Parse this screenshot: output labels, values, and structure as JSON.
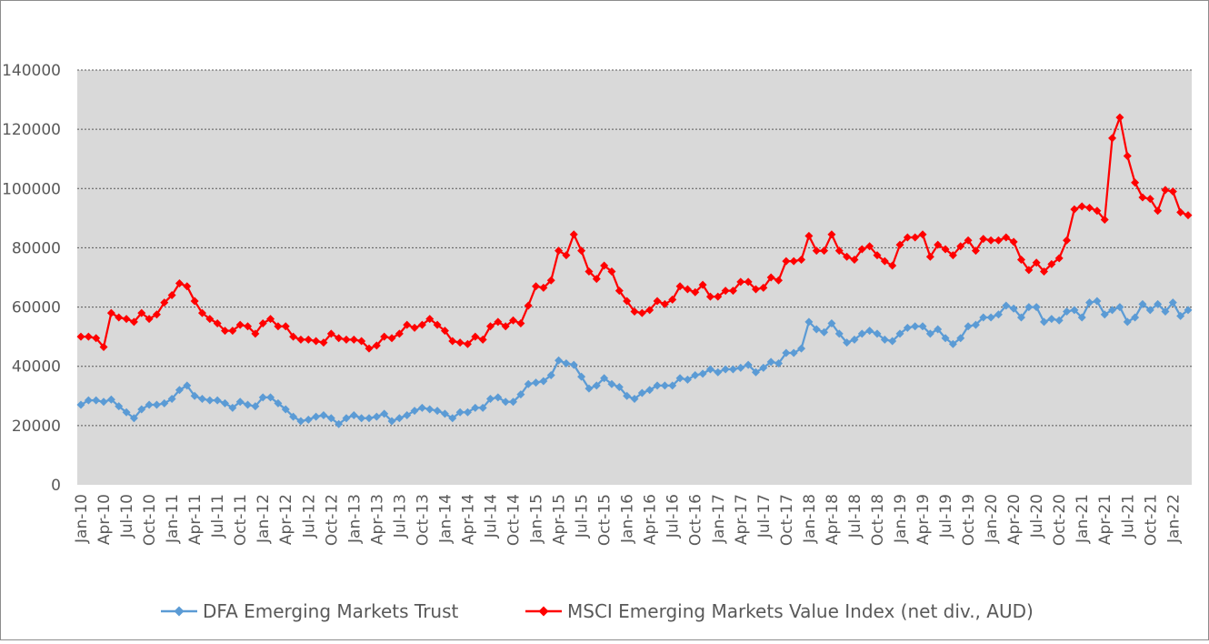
{
  "chart_data": {
    "type": "line",
    "title": "",
    "xlabel": "",
    "ylabel": "",
    "ylim": [
      0,
      140000
    ],
    "y_ticks": [
      "0",
      "20000",
      "40000",
      "60000",
      "80000",
      "100000",
      "120000",
      "140000"
    ],
    "x_tick_labels": [
      "Jan-10",
      "Apr-10",
      "Jul-10",
      "Oct-10",
      "Jan-11",
      "Apr-11",
      "Jul-11",
      "Oct-11",
      "Jan-12",
      "Apr-12",
      "Jul-12",
      "Oct-12",
      "Jan-13",
      "Apr-13",
      "Jul-13",
      "Oct-13",
      "Jan-14",
      "Apr-14",
      "Jul-14",
      "Oct-14",
      "Jan-15",
      "Apr-15",
      "Jul-15",
      "Oct-15",
      "Jan-16",
      "Apr-16",
      "Jul-16",
      "Oct-16",
      "Jan-17",
      "Apr-17",
      "Jul-17",
      "Oct-17",
      "Jan-18",
      "Apr-18",
      "Jul-18",
      "Oct-18",
      "Jan-19",
      "Apr-19",
      "Jul-19",
      "Oct-19",
      "Jan-20",
      "Apr-20",
      "Jul-20",
      "Oct-20",
      "Jan-21",
      "Apr-21",
      "Jul-21",
      "Oct-21",
      "Jan-22"
    ],
    "x_start": "Jan-10",
    "frequency": "monthly",
    "grid": "horizontal dotted",
    "plot_background": "#d9d9d9",
    "legend_position": "bottom",
    "series": [
      {
        "name": "DFA Emerging Markets Trust",
        "color": "#5b9bd5",
        "marker": "diamond",
        "values": [
          27000,
          28500,
          28500,
          28000,
          28800,
          26500,
          24500,
          22500,
          25500,
          27000,
          27000,
          27500,
          29000,
          32000,
          33500,
          30000,
          29000,
          28500,
          28500,
          27500,
          26000,
          28000,
          27000,
          26500,
          29500,
          29500,
          27500,
          25500,
          23000,
          21500,
          22000,
          23000,
          23500,
          22500,
          20500,
          22500,
          23500,
          22500,
          22500,
          23000,
          24000,
          21500,
          22500,
          23500,
          25000,
          26000,
          25500,
          25000,
          24000,
          22500,
          24500,
          24500,
          26000,
          26000,
          29000,
          29500,
          28000,
          28000,
          30500,
          34000,
          34500,
          35000,
          37000,
          42000,
          41000,
          40500,
          36500,
          32500,
          33500,
          36000,
          34000,
          33000,
          30000,
          29000,
          31000,
          32000,
          33500,
          33500,
          33500,
          36000,
          35500,
          37000,
          37500,
          39000,
          38000,
          39000,
          39000,
          39500,
          40500,
          38000,
          39500,
          41500,
          41000,
          44500,
          44500,
          46000,
          55000,
          52500,
          51500,
          54500,
          51000,
          48000,
          49000,
          51000,
          52000,
          51000,
          49000,
          48500,
          51000,
          53000,
          53500,
          53500,
          51000,
          52500,
          49500,
          47500,
          49500,
          53500,
          54000,
          56500,
          56500,
          57500,
          60500,
          59500,
          56500,
          60000,
          60000,
          55000,
          56000,
          55500,
          58500,
          59000,
          56500,
          61500,
          62000,
          57500,
          59000,
          60000,
          55000,
          56500,
          61000,
          59000,
          61000,
          58500,
          61500,
          57000,
          59000
        ]
      },
      {
        "name": "MSCI Emerging Markets Value Index (net div., AUD)",
        "color": "#ff0000",
        "marker": "diamond",
        "values": [
          50000,
          50000,
          49500,
          46500,
          58000,
          56500,
          56000,
          55000,
          58000,
          56000,
          57500,
          61500,
          64000,
          68000,
          67000,
          62000,
          58000,
          56000,
          54500,
          52000,
          52000,
          54000,
          53500,
          51000,
          54500,
          56000,
          53500,
          53500,
          50000,
          49000,
          49000,
          48500,
          48000,
          51000,
          49500,
          49000,
          49000,
          48500,
          46000,
          47000,
          50000,
          49500,
          51000,
          54000,
          53000,
          54000,
          56000,
          54000,
          52000,
          48500,
          48000,
          47500,
          50000,
          49000,
          53500,
          55000,
          53500,
          55500,
          54500,
          60500,
          67000,
          66500,
          69000,
          79000,
          77500,
          84500,
          79000,
          72000,
          69500,
          74000,
          72000,
          65500,
          62000,
          58500,
          58000,
          59000,
          62000,
          61000,
          62500,
          67000,
          66000,
          65000,
          67500,
          63500,
          63500,
          65500,
          65500,
          68500,
          68500,
          66000,
          66500,
          70000,
          69000,
          75500,
          75500,
          76000,
          84000,
          79000,
          79000,
          84500,
          79000,
          77000,
          76000,
          79500,
          80500,
          77500,
          75500,
          74000,
          81000,
          83500,
          83500,
          84500,
          77000,
          81000,
          79500,
          77500,
          80500,
          82500,
          79000,
          83000,
          82500,
          82500,
          83500,
          82000,
          76000,
          72500,
          75000,
          72000,
          74500,
          76500,
          82500,
          93000,
          94000,
          93500,
          92500,
          89500,
          117000,
          124000,
          111000,
          102000,
          97000,
          96500,
          92500,
          99500,
          99000,
          92000,
          91000
        ]
      }
    ]
  }
}
